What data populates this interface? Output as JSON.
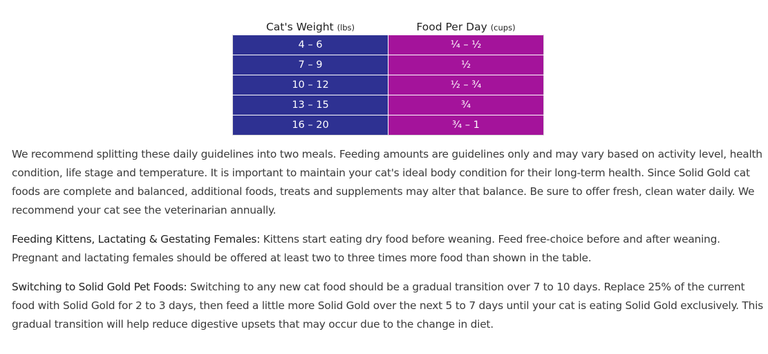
{
  "feeding_table": {
    "headers": {
      "weight": {
        "label": "Cat's Weight",
        "unit": "(lbs)"
      },
      "food": {
        "label": "Food Per Day",
        "unit": "(cups)"
      }
    },
    "rows": [
      {
        "weight": "4 – 6",
        "food": "¼ – ½"
      },
      {
        "weight": "7 – 9",
        "food": "½"
      },
      {
        "weight": "10 – 12",
        "food": "½ – ¾"
      },
      {
        "weight": "13 – 15",
        "food": "¾"
      },
      {
        "weight": "16 – 20",
        "food": "¾ – 1"
      }
    ],
    "colors": {
      "weight_column": "#2e3192",
      "food_column": "#a4139b"
    }
  },
  "paragraphs": {
    "intro": "We recommend splitting these daily guidelines into two meals. Feeding amounts are guidelines only and may vary based on activity level, health condition, life stage and temperature. It is important to maintain your cat's ideal body condition for their long-term health. Since Solid Gold cat foods are complete and balanced, additional foods, treats and supplements may alter that balance. Be sure to offer fresh, clean water daily. We recommend your cat see the veterinarian annually.",
    "kittens": {
      "lead": "Feeding Kittens, Lactating & Gestating Females:",
      "body": " Kittens start eating dry food before weaning. Feed free-choice before and after weaning. Pregnant and lactating females should be offered at least two to three times more food than shown in the table."
    },
    "switching": {
      "lead": "Switching to Solid Gold Pet Foods:",
      "body": " Switching to any new cat food should be a gradual transition over 7 to 10 days. Replace 25% of the current food with Solid Gold for 2 to 3 days, then feed a little more Solid Gold over the next 5 to 7 days until your cat is eating Solid Gold exclusively. This gradual transition will help reduce digestive upsets that may occur due to the change in diet."
    }
  }
}
